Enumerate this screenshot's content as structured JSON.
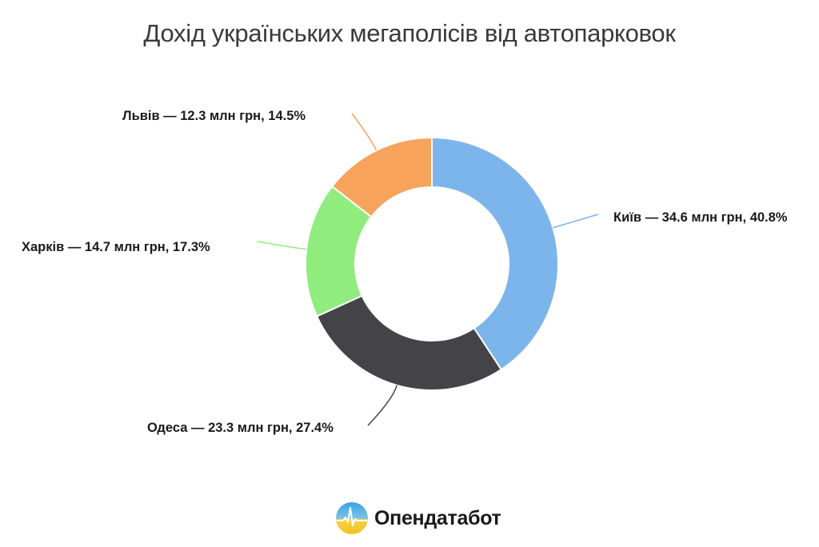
{
  "title": "Дохід українських мегаполісів від автопарковок",
  "chart_data": {
    "type": "pie",
    "subtype": "donut",
    "title": "Дохід українських мегаполісів від автопарковок",
    "unit": "млн грн",
    "categories": [
      "Київ",
      "Одеса",
      "Харків",
      "Львів"
    ],
    "values": [
      34.6,
      23.3,
      14.7,
      12.3
    ],
    "percentages": [
      40.8,
      27.4,
      17.3,
      14.5
    ],
    "colors": [
      "#7cb5ec",
      "#434348",
      "#90ed7d",
      "#f7a35c"
    ],
    "labels": [
      "Київ — 34.6 млн грн, 40.8%",
      "Одеса — 23.3 млн грн, 27.4%",
      "Харків — 14.7 млн грн, 17.3%",
      "Львів — 12.3 млн грн, 14.5%"
    ],
    "legend": "none",
    "start_angle": "top, clockwise"
  },
  "labels": {
    "kyiv": "Київ — 34.6 млн грн, 40.8%",
    "odesa": "Одеса — 23.3 млн грн, 27.4%",
    "kharkiv": "Харків — 14.7 млн грн, 17.3%",
    "lviv": "Львів — 12.3 млн грн, 14.5%"
  },
  "logo": {
    "text": "Опендатабот"
  }
}
